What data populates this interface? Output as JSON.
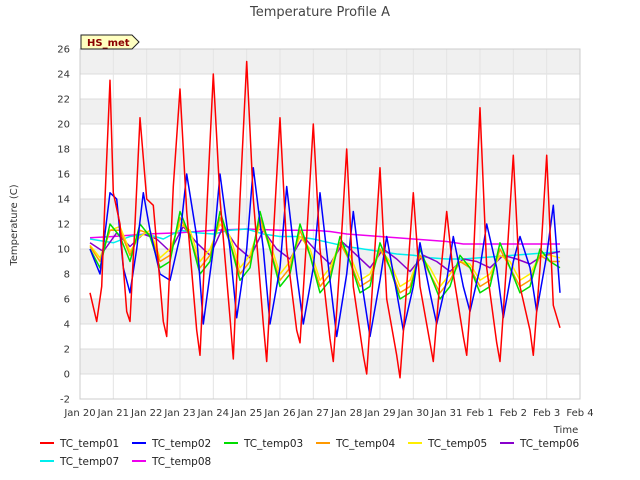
{
  "chart_data": {
    "type": "line",
    "title": "Temperature Profile A",
    "xlabel": "Time",
    "ylabel": "Temperature (C)",
    "badge": "HS_met",
    "ylim": [
      -2,
      26
    ],
    "yticks": [
      -2,
      0,
      2,
      4,
      6,
      8,
      10,
      12,
      14,
      16,
      18,
      20,
      22,
      24,
      26
    ],
    "xlim": [
      0,
      15
    ],
    "xticks": [
      {
        "v": 0,
        "label": "Jan 20"
      },
      {
        "v": 1,
        "label": "Jan 21"
      },
      {
        "v": 2,
        "label": "Jan 22"
      },
      {
        "v": 3,
        "label": "Jan 23"
      },
      {
        "v": 4,
        "label": "Jan 24"
      },
      {
        "v": 5,
        "label": "Jan 25"
      },
      {
        "v": 6,
        "label": "Jan 26"
      },
      {
        "v": 7,
        "label": "Jan 27"
      },
      {
        "v": 8,
        "label": "Jan 28"
      },
      {
        "v": 9,
        "label": "Jan 29"
      },
      {
        "v": 10,
        "label": "Jan 30"
      },
      {
        "v": 11,
        "label": "Jan 31"
      },
      {
        "v": 12,
        "label": "Feb 1"
      },
      {
        "v": 13,
        "label": "Feb 2"
      },
      {
        "v": 14,
        "label": "Feb 3"
      },
      {
        "v": 15,
        "label": "Feb 4"
      }
    ],
    "x_unit": "days since Jan 20",
    "series": [
      {
        "name": "TC_temp01",
        "color": "#ff0000",
        "x": [
          0.3,
          0.5,
          0.65,
          0.75,
          0.9,
          1.0,
          1.2,
          1.4,
          1.5,
          1.65,
          1.8,
          2.0,
          2.2,
          2.5,
          2.6,
          2.8,
          3.0,
          3.2,
          3.5,
          3.6,
          3.8,
          4.0,
          4.2,
          4.5,
          4.6,
          4.8,
          5.0,
          5.2,
          5.5,
          5.6,
          5.8,
          6.0,
          6.2,
          6.5,
          6.6,
          6.8,
          7.0,
          7.2,
          7.5,
          7.6,
          7.8,
          8.0,
          8.2,
          8.5,
          8.6,
          8.8,
          9.0,
          9.2,
          9.5,
          9.6,
          9.8,
          10.0,
          10.2,
          10.5,
          10.6,
          10.8,
          11.0,
          11.2,
          11.5,
          11.6,
          11.8,
          12.0,
          12.2,
          12.5,
          12.6,
          12.8,
          13.0,
          13.2,
          13.5,
          13.6,
          13.8,
          14.0,
          14.2,
          14.4
        ],
        "values": [
          6.5,
          4.2,
          7.0,
          14.0,
          23.5,
          14.5,
          12.0,
          5.0,
          4.2,
          12.0,
          20.5,
          14.0,
          13.5,
          4.2,
          3.0,
          15.0,
          22.8,
          13.0,
          3.5,
          1.5,
          13.0,
          24.0,
          14.0,
          4.5,
          1.2,
          14.0,
          25.0,
          14.0,
          4.0,
          1.0,
          11.0,
          20.5,
          10.0,
          3.5,
          2.5,
          11.0,
          20.0,
          10.0,
          2.8,
          1.0,
          9.0,
          18.0,
          7.0,
          1.5,
          0.0,
          8.0,
          16.5,
          6.0,
          1.5,
          -0.3,
          7.0,
          14.5,
          7.0,
          2.5,
          1.0,
          7.5,
          13.0,
          8.0,
          3.0,
          1.5,
          9.0,
          21.3,
          8.5,
          2.5,
          1.0,
          9.0,
          17.5,
          7.0,
          3.5,
          1.5,
          8.5,
          17.5,
          5.5,
          3.7
        ]
      },
      {
        "name": "TC_temp02",
        "color": "#0000ff",
        "x": [
          0.3,
          0.6,
          0.9,
          1.1,
          1.3,
          1.5,
          1.7,
          1.9,
          2.1,
          2.4,
          2.7,
          3.0,
          3.2,
          3.5,
          3.7,
          4.0,
          4.2,
          4.5,
          4.7,
          5.0,
          5.2,
          5.5,
          5.7,
          6.0,
          6.2,
          6.5,
          6.7,
          7.0,
          7.2,
          7.5,
          7.7,
          8.0,
          8.2,
          8.5,
          8.7,
          9.0,
          9.2,
          9.5,
          9.7,
          10.0,
          10.2,
          10.5,
          10.7,
          11.0,
          11.2,
          11.5,
          11.7,
          12.0,
          12.2,
          12.5,
          12.7,
          13.0,
          13.2,
          13.5,
          13.7,
          14.0,
          14.2,
          14.4
        ],
        "values": [
          10.0,
          8.0,
          14.5,
          14.0,
          8.5,
          6.5,
          10.0,
          14.5,
          11.5,
          8.0,
          7.5,
          11.0,
          16.0,
          11.0,
          4.0,
          10.0,
          16.0,
          10.0,
          4.5,
          10.0,
          16.5,
          10.0,
          4.0,
          8.5,
          15.0,
          8.0,
          4.0,
          8.5,
          14.5,
          7.5,
          3.0,
          8.0,
          13.0,
          6.5,
          3.0,
          7.5,
          11.0,
          6.5,
          3.5,
          7.0,
          10.5,
          6.5,
          4.0,
          7.5,
          11.0,
          7.0,
          5.0,
          8.5,
          12.0,
          8.5,
          4.5,
          9.0,
          11.0,
          8.5,
          5.0,
          9.5,
          13.5,
          6.5
        ]
      },
      {
        "name": "TC_temp03",
        "color": "#00dd00",
        "x": [
          0.3,
          0.6,
          0.9,
          1.2,
          1.5,
          1.8,
          2.1,
          2.4,
          2.7,
          3.0,
          3.3,
          3.6,
          3.9,
          4.2,
          4.5,
          4.8,
          5.1,
          5.4,
          5.7,
          6.0,
          6.3,
          6.6,
          6.9,
          7.2,
          7.5,
          7.8,
          8.1,
          8.4,
          8.7,
          9.0,
          9.3,
          9.6,
          9.9,
          10.2,
          10.5,
          10.8,
          11.1,
          11.4,
          11.7,
          12.0,
          12.3,
          12.6,
          12.9,
          13.2,
          13.5,
          13.8,
          14.1,
          14.4
        ],
        "values": [
          10.0,
          8.5,
          12.0,
          11.0,
          9.0,
          12.0,
          11.0,
          8.5,
          9.0,
          13.0,
          11.0,
          8.0,
          9.0,
          13.0,
          10.5,
          7.5,
          8.5,
          13.0,
          10.0,
          7.0,
          8.0,
          12.0,
          9.5,
          6.5,
          7.5,
          11.0,
          9.0,
          6.5,
          7.0,
          10.5,
          8.5,
          6.0,
          6.5,
          10.0,
          8.0,
          6.0,
          7.0,
          9.5,
          8.5,
          6.5,
          7.0,
          10.5,
          8.5,
          6.5,
          7.0,
          10.0,
          9.0,
          8.5
        ]
      },
      {
        "name": "TC_temp04",
        "color": "#ff9900",
        "x": [
          0.3,
          0.6,
          0.9,
          1.2,
          1.5,
          1.8,
          2.1,
          2.4,
          2.7,
          3.0,
          3.3,
          3.6,
          3.9,
          4.2,
          4.5,
          4.8,
          5.1,
          5.4,
          5.7,
          6.0,
          6.3,
          6.6,
          6.9,
          7.2,
          7.5,
          7.8,
          8.1,
          8.4,
          8.7,
          9.0,
          9.3,
          9.6,
          9.9,
          10.2,
          10.5,
          10.8,
          11.1,
          11.4,
          11.7,
          12.0,
          12.3,
          12.6,
          12.9,
          13.2,
          13.5,
          13.8,
          14.1,
          14.4
        ],
        "values": [
          10.2,
          9.0,
          11.5,
          11.5,
          9.5,
          11.5,
          11.2,
          9.0,
          9.5,
          12.5,
          11.0,
          8.5,
          9.5,
          12.5,
          10.5,
          8.0,
          9.0,
          12.5,
          10.0,
          7.5,
          8.5,
          11.5,
          9.5,
          7.0,
          8.0,
          10.5,
          9.0,
          7.0,
          7.5,
          10.0,
          8.5,
          6.5,
          7.0,
          9.5,
          8.0,
          6.5,
          7.5,
          9.0,
          8.5,
          7.0,
          7.5,
          10.0,
          8.5,
          7.0,
          7.5,
          9.5,
          9.0,
          9.0
        ]
      },
      {
        "name": "TC_temp05",
        "color": "#ffee00",
        "x": [
          0.3,
          0.6,
          0.9,
          1.2,
          1.5,
          1.8,
          2.1,
          2.4,
          2.7,
          3.0,
          3.3,
          3.6,
          3.9,
          4.2,
          4.5,
          4.8,
          5.1,
          5.4,
          5.7,
          6.0,
          6.3,
          6.6,
          6.9,
          7.2,
          7.5,
          7.8,
          8.1,
          8.4,
          8.7,
          9.0,
          9.3,
          9.6,
          9.9,
          10.2,
          10.5,
          10.8,
          11.1,
          11.4,
          11.7,
          12.0,
          12.3,
          12.6,
          12.9,
          13.2,
          13.5,
          13.8,
          14.1,
          14.4
        ],
        "values": [
          10.3,
          9.3,
          11.5,
          11.8,
          9.8,
          11.0,
          11.5,
          9.3,
          10.0,
          12.0,
          11.5,
          9.0,
          10.0,
          12.0,
          11.0,
          8.5,
          9.5,
          12.0,
          10.5,
          8.0,
          9.0,
          11.0,
          10.0,
          7.5,
          8.5,
          10.5,
          9.5,
          7.5,
          8.0,
          10.0,
          9.0,
          7.0,
          7.5,
          9.5,
          8.5,
          7.0,
          8.0,
          9.0,
          8.8,
          7.5,
          8.0,
          9.5,
          9.0,
          7.5,
          8.0,
          9.5,
          9.5,
          9.3
        ]
      },
      {
        "name": "TC_temp06",
        "color": "#8800cc",
        "x": [
          0.3,
          0.7,
          1.1,
          1.5,
          1.9,
          2.3,
          2.7,
          3.1,
          3.5,
          3.9,
          4.3,
          4.7,
          5.1,
          5.5,
          5.9,
          6.3,
          6.7,
          7.1,
          7.5,
          7.9,
          8.3,
          8.7,
          9.1,
          9.5,
          9.9,
          10.3,
          10.7,
          11.1,
          11.5,
          11.9,
          12.3,
          12.7,
          13.1,
          13.5,
          13.9,
          14.4
        ],
        "values": [
          10.5,
          9.8,
          11.3,
          10.2,
          11.2,
          10.8,
          9.8,
          11.8,
          10.5,
          9.5,
          11.8,
          10.2,
          9.3,
          11.5,
          10.0,
          9.2,
          11.0,
          9.8,
          8.8,
          10.5,
          9.5,
          8.5,
          10.0,
          9.2,
          8.2,
          9.5,
          9.0,
          8.2,
          9.2,
          9.0,
          8.5,
          9.5,
          9.2,
          8.8,
          9.5,
          9.8
        ]
      },
      {
        "name": "TC_temp07",
        "color": "#00eeee",
        "x": [
          0.3,
          1.0,
          1.5,
          2.0,
          2.5,
          3.0,
          3.5,
          4.0,
          4.5,
          5.0,
          5.5,
          6.0,
          6.5,
          7.0,
          7.5,
          8.0,
          8.5,
          9.0,
          9.5,
          10.0,
          10.5,
          11.0,
          11.5,
          12.0,
          12.5,
          13.0,
          13.5,
          14.0,
          14.4
        ],
        "values": [
          10.8,
          10.5,
          11.0,
          11.2,
          10.8,
          11.5,
          11.3,
          11.2,
          11.5,
          11.6,
          11.2,
          11.0,
          11.0,
          10.8,
          10.5,
          10.2,
          10.0,
          9.8,
          9.6,
          9.5,
          9.3,
          9.2,
          9.2,
          9.3,
          9.4,
          9.5,
          9.6,
          9.7,
          9.8
        ]
      },
      {
        "name": "TC_temp08",
        "color": "#ee00ee",
        "x": [
          0.3,
          1.0,
          2.0,
          3.0,
          4.0,
          5.0,
          6.0,
          7.0,
          7.5,
          8.0,
          8.5,
          9.0,
          9.5,
          10.0,
          10.5,
          11.0,
          11.5,
          12.0,
          12.5,
          13.0,
          13.5,
          14.0,
          14.4
        ],
        "values": [
          10.9,
          11.0,
          11.2,
          11.3,
          11.5,
          11.6,
          11.5,
          11.5,
          11.4,
          11.2,
          11.1,
          11.0,
          10.9,
          10.8,
          10.7,
          10.6,
          10.4,
          10.4,
          10.4,
          10.4,
          10.4,
          10.4,
          10.4
        ]
      }
    ]
  }
}
